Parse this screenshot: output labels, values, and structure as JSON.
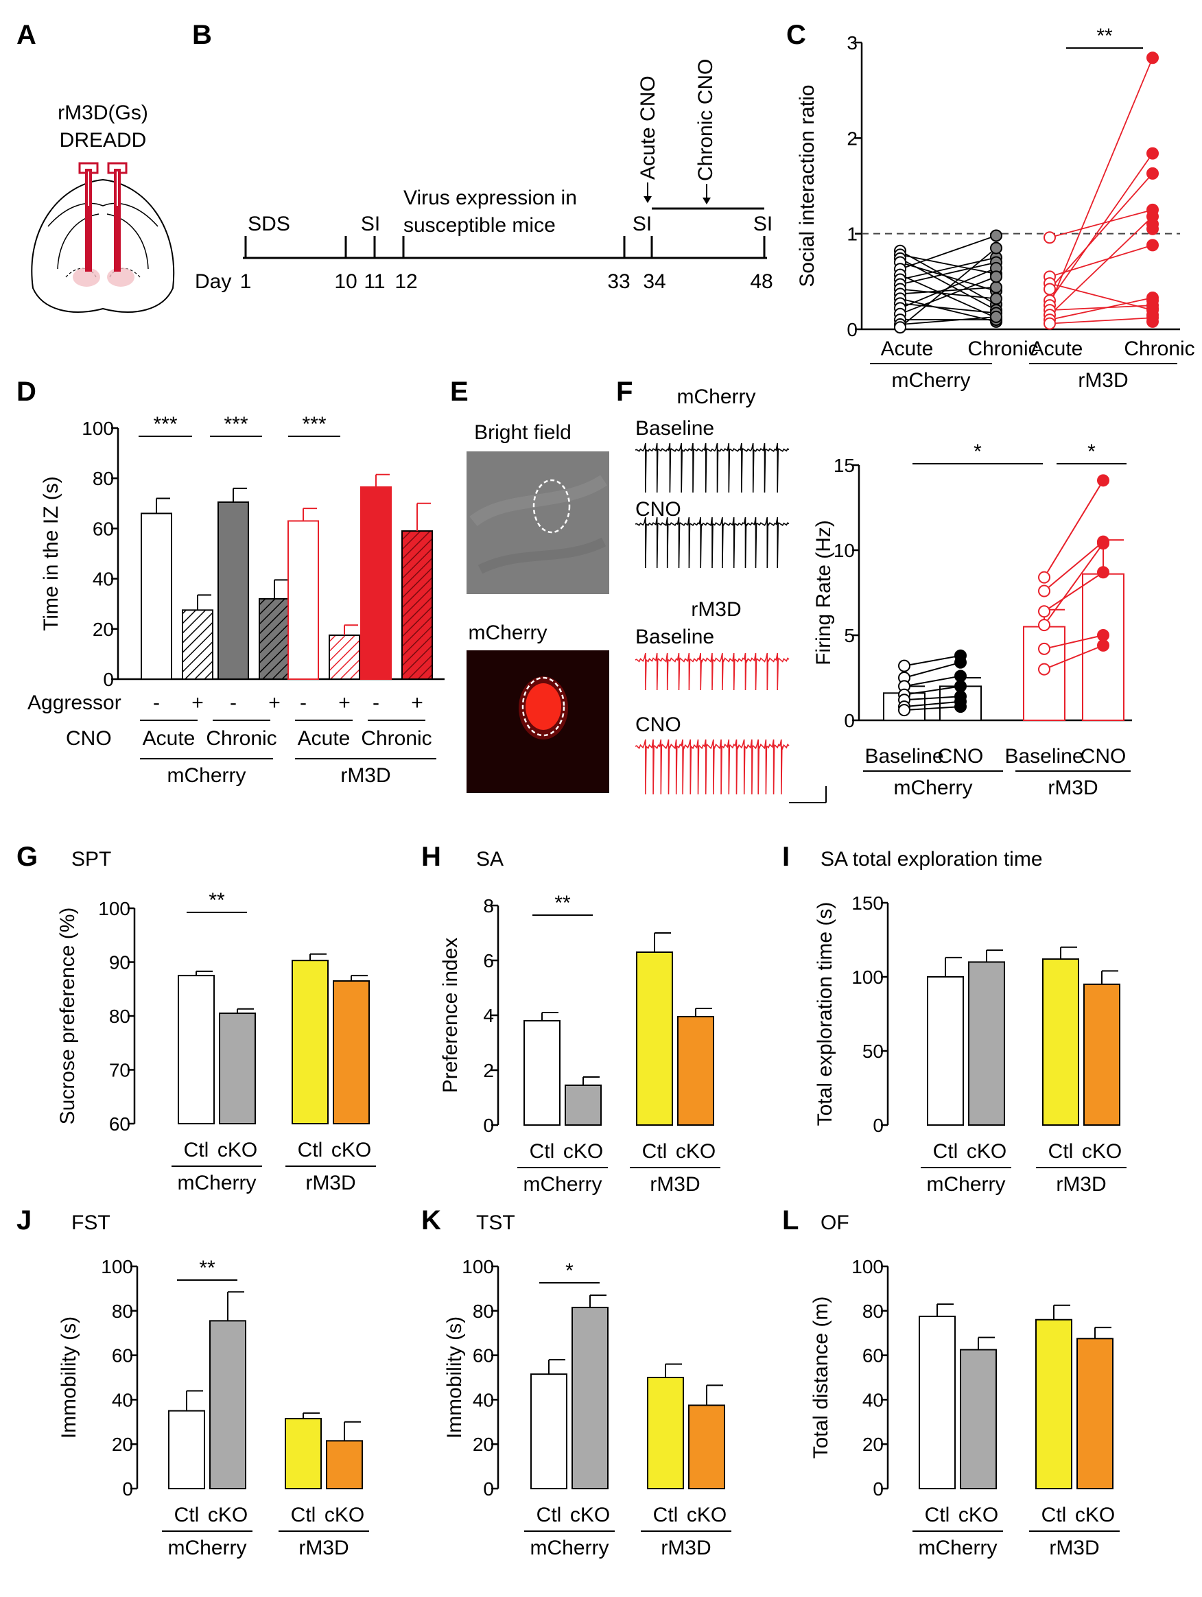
{
  "colors": {
    "black": "#000000",
    "white": "#ffffff",
    "gray": "#808080",
    "dark_gray": "#777777",
    "light_gray": "#aaaaaa",
    "red": "#e8202a",
    "yellow": "#f5ec2a",
    "orange": "#f39322",
    "brain_red": "#c8102e"
  },
  "panels": {
    "A": {
      "letter": "A",
      "title_line1": "rM3D(Gs)",
      "title_line2": "DREADD",
      "icon": "brain-coronal-section-icon"
    },
    "B": {
      "letter": "B",
      "day_prefix": "Day",
      "days": [
        "1",
        "10",
        "11",
        "12",
        "33",
        "34",
        "48"
      ],
      "labels": {
        "sds": "SDS",
        "si1": "SI",
        "virus_line1": "Virus expression in",
        "virus_line2": "susceptible mice",
        "si2": "SI",
        "si3": "SI",
        "acute_cno": "Acute CNO",
        "chronic_cno": "Chronic CNO"
      }
    },
    "E": {
      "letter": "E",
      "bright_field_label": "Bright field",
      "mcherry_label": "mCherry",
      "icon": "neuron-micrograph-icon"
    },
    "F_traces": {
      "letter": "F",
      "top_title": "mCherry",
      "top_baseline": "Baseline",
      "top_cno": "CNO",
      "bottom_title": "rM3D",
      "bottom_baseline": "Baseline",
      "bottom_cno": "CNO",
      "icon": "scale-bar-icon"
    },
    "C_letter": "C",
    "D_letter": "D",
    "G_letter": "G",
    "H_letter": "H",
    "I_letter": "I",
    "J_letter": "J",
    "K_letter": "K",
    "L_letter": "L"
  },
  "chart_data": [
    {
      "id": "C",
      "type": "scatter",
      "title": "",
      "ylabel": "Social interaction ratio",
      "ylim": [
        0,
        3
      ],
      "yticks": [
        "0",
        "1",
        "2",
        "3"
      ],
      "reference_line": 1,
      "categories": [
        "Acute",
        "Chronic",
        "Acute",
        "Chronic"
      ],
      "groups": [
        "mCherry",
        "rM3D"
      ],
      "series": [
        {
          "name": "mCherry",
          "acute": [
            0.82,
            0.78,
            0.74,
            0.7,
            0.63,
            0.57,
            0.52,
            0.47,
            0.42,
            0.37,
            0.32,
            0.27,
            0.22,
            0.16,
            0.1,
            0.05,
            0.02
          ],
          "chronic": [
            0.26,
            0.58,
            0.2,
            0.4,
            0.98,
            0.12,
            0.75,
            0.7,
            0.32,
            0.44,
            0.08,
            0.17,
            0.64,
            0.55,
            0.1,
            0.13,
            0.85
          ]
        },
        {
          "name": "rM3D",
          "acute": [
            0.96,
            0.55,
            0.48,
            0.42,
            0.3,
            0.25,
            0.2,
            0.15,
            0.1,
            0.06
          ],
          "chronic": [
            1.25,
            0.88,
            0.2,
            1.63,
            1.84,
            2.84,
            0.25,
            1.18,
            0.33,
            0.12,
            1.05,
            0.3,
            1.1,
            0.15,
            0.08,
            0.22
          ]
        }
      ],
      "significance": [
        {
          "label": "**",
          "between": "rM3D Acute vs Chronic"
        }
      ]
    },
    {
      "id": "D",
      "type": "bar",
      "title": "",
      "ylabel": "Time in the IZ (s)",
      "ylim": [
        0,
        100
      ],
      "yticks": [
        "0",
        "20",
        "40",
        "60",
        "80",
        "100"
      ],
      "row1_label": "Aggressor",
      "row2_label": "CNO",
      "signs": [
        "-",
        "+",
        "-",
        "+",
        "-",
        "+",
        "-",
        "+"
      ],
      "subcategories": [
        "Acute",
        "Chronic",
        "Acute",
        "Chronic"
      ],
      "groups": [
        "mCherry",
        "rM3D"
      ],
      "values": [
        66,
        27.5,
        70.5,
        32,
        63,
        17.5,
        76.5,
        59
      ],
      "errors": [
        6,
        6,
        5.5,
        7.5,
        5,
        4,
        5,
        11
      ],
      "significance": [
        "***",
        "***",
        "***"
      ]
    },
    {
      "id": "F",
      "type": "bar",
      "title": "",
      "ylabel": "Firing Rate (Hz)",
      "ylim": [
        0,
        15
      ],
      "yticks": [
        "0",
        "5",
        "10",
        "15"
      ],
      "categories": [
        "Baseline",
        "CNO",
        "Baseline",
        "CNO"
      ],
      "groups": [
        "mCherry",
        "rM3D"
      ],
      "values": [
        1.6,
        2.0,
        5.5,
        8.6
      ],
      "errors": [
        0.4,
        0.5,
        1.0,
        2.0
      ],
      "paired_points": {
        "mCherry": [
          [
            3.2,
            3.8
          ],
          [
            2.5,
            3.4
          ],
          [
            2.0,
            2.6
          ],
          [
            1.5,
            2.0
          ],
          [
            1.2,
            1.4
          ],
          [
            0.8,
            1.1
          ],
          [
            0.6,
            0.8
          ]
        ],
        "rM3D": [
          [
            8.4,
            14.1
          ],
          [
            7.6,
            10.5
          ],
          [
            6.4,
            8.7
          ],
          [
            5.6,
            10.4
          ],
          [
            4.2,
            5.0
          ],
          [
            3.0,
            4.4
          ]
        ]
      },
      "significance": [
        "*",
        "*"
      ]
    },
    {
      "id": "G",
      "type": "bar",
      "title": "SPT",
      "ylabel": "Sucrose preference (%)",
      "ylim": [
        60,
        100
      ],
      "yticks": [
        "60",
        "70",
        "80",
        "90",
        "100"
      ],
      "categories": [
        "Ctl",
        "cKO",
        "Ctl",
        "cKO"
      ],
      "groups": [
        "mCherry",
        "rM3D"
      ],
      "values": [
        87.5,
        80.5,
        90.3,
        86.5
      ],
      "errors": [
        0.8,
        0.8,
        1.2,
        1.0
      ],
      "significance": [
        "**"
      ]
    },
    {
      "id": "H",
      "type": "bar",
      "title": "SA",
      "ylabel": "Preference index",
      "ylim": [
        0,
        8
      ],
      "yticks": [
        "0",
        "2",
        "4",
        "6",
        "8"
      ],
      "categories": [
        "Ctl",
        "cKO",
        "Ctl",
        "cKO"
      ],
      "groups": [
        "mCherry",
        "rM3D"
      ],
      "values": [
        3.8,
        1.45,
        6.3,
        3.95
      ],
      "errors": [
        0.3,
        0.3,
        0.7,
        0.3
      ],
      "significance": [
        "**"
      ]
    },
    {
      "id": "I",
      "type": "bar",
      "title": "SA total exploration time",
      "ylabel": "Total exploration time (s)",
      "ylim": [
        0,
        150
      ],
      "yticks": [
        "0",
        "50",
        "100",
        "150"
      ],
      "categories": [
        "Ctl",
        "cKO",
        "Ctl",
        "cKO"
      ],
      "groups": [
        "mCherry",
        "rM3D"
      ],
      "values": [
        100,
        110,
        112,
        95
      ],
      "errors": [
        13,
        8,
        8,
        9
      ],
      "significance": []
    },
    {
      "id": "J",
      "type": "bar",
      "title": "FST",
      "ylabel": "Immobility (s)",
      "ylim": [
        0,
        100
      ],
      "yticks": [
        "0",
        "20",
        "40",
        "60",
        "80",
        "100"
      ],
      "categories": [
        "Ctl",
        "cKO",
        "Ctl",
        "cKO"
      ],
      "groups": [
        "mCherry",
        "rM3D"
      ],
      "values": [
        35,
        75.5,
        31.5,
        21.5
      ],
      "errors": [
        9,
        13,
        2.5,
        8.5
      ],
      "significance": [
        "**"
      ]
    },
    {
      "id": "K",
      "type": "bar",
      "title": "TST",
      "ylabel": "Immobility (s)",
      "ylim": [
        0,
        100
      ],
      "yticks": [
        "0",
        "20",
        "40",
        "60",
        "80",
        "100"
      ],
      "categories": [
        "Ctl",
        "cKO",
        "Ctl",
        "cKO"
      ],
      "groups": [
        "mCherry",
        "rM3D"
      ],
      "values": [
        51.5,
        81.5,
        50,
        37.5
      ],
      "errors": [
        6.5,
        5.5,
        6,
        9
      ],
      "significance": [
        "*"
      ]
    },
    {
      "id": "L",
      "type": "bar",
      "title": "OF",
      "ylabel": "Total distance (m)",
      "ylim": [
        0,
        100
      ],
      "yticks": [
        "0",
        "20",
        "40",
        "60",
        "80",
        "100"
      ],
      "categories": [
        "Ctl",
        "cKO",
        "Ctl",
        "cKO"
      ],
      "groups": [
        "mCherry",
        "rM3D"
      ],
      "values": [
        77.5,
        62.5,
        76,
        67.5
      ],
      "errors": [
        5.5,
        5.5,
        6.5,
        5
      ],
      "significance": []
    }
  ]
}
